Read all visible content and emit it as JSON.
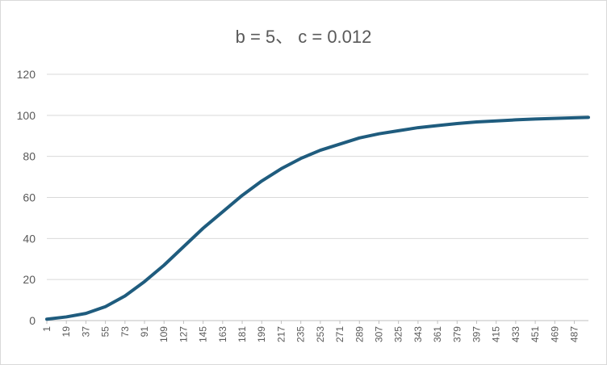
{
  "chart_data": {
    "type": "line",
    "title": "b = 5、 c = 0.012",
    "xlabel": "",
    "ylabel": "",
    "ylim": [
      0,
      120
    ],
    "yticks": [
      0,
      20,
      40,
      60,
      80,
      100,
      120
    ],
    "x_tick_labels": [
      "1",
      "19",
      "37",
      "55",
      "73",
      "91",
      "109",
      "127",
      "145",
      "163",
      "181",
      "199",
      "217",
      "235",
      "253",
      "271",
      "289",
      "307",
      "325",
      "343",
      "361",
      "379",
      "397",
      "415",
      "433",
      "451",
      "469",
      "487"
    ],
    "x_range": [
      1,
      500
    ],
    "grid": "horizontal",
    "legend": "none",
    "line_color": "#1f5c7e",
    "series": [
      {
        "x": [
          1,
          19,
          37,
          55,
          73,
          91,
          109,
          127,
          145,
          163,
          181,
          199,
          217,
          235,
          253,
          271,
          289,
          307,
          325,
          343,
          361,
          379,
          397,
          415,
          433,
          451,
          469,
          487,
          500
        ],
        "values": [
          0.7,
          1.8,
          3.5,
          6.8,
          12.0,
          19.0,
          27.0,
          36.0,
          45.0,
          53.0,
          61.0,
          68.0,
          74.0,
          79.0,
          83.0,
          86.0,
          89.0,
          91.0,
          92.5,
          94.0,
          95.0,
          96.0,
          96.8,
          97.3,
          97.8,
          98.2,
          98.5,
          98.8,
          99.0
        ]
      }
    ]
  }
}
